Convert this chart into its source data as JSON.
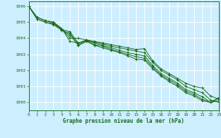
{
  "title": "Graphe pression niveau de la mer (hPa)",
  "bg_color": "#cceeff",
  "grid_color": "#ffffff",
  "line_color": "#1a6b1a",
  "xlim": [
    0,
    23
  ],
  "ylim": [
    999.5,
    1006.3
  ],
  "yticks": [
    1000,
    1001,
    1002,
    1003,
    1004,
    1005,
    1006
  ],
  "xticks": [
    0,
    1,
    2,
    3,
    4,
    5,
    6,
    7,
    8,
    9,
    10,
    11,
    12,
    13,
    14,
    15,
    16,
    17,
    18,
    19,
    20,
    21,
    22,
    23
  ],
  "series": [
    [
      1006.0,
      1005.3,
      1005.1,
      1005.0,
      1004.6,
      1004.0,
      1004.0,
      1003.9,
      1003.8,
      1003.7,
      1003.6,
      1003.5,
      1003.4,
      1003.3,
      1003.35,
      1002.6,
      1002.1,
      1001.8,
      1001.5,
      1001.2,
      1001.0,
      1000.9,
      1000.4,
      1000.2
    ],
    [
      1006.0,
      1005.3,
      1005.1,
      1005.0,
      1004.6,
      1003.8,
      1003.7,
      1003.85,
      1003.75,
      1003.65,
      1003.5,
      1003.4,
      1003.3,
      1003.2,
      1003.1,
      1002.5,
      1002.0,
      1001.7,
      1001.4,
      1001.0,
      1000.8,
      1000.6,
      1000.15,
      1000.0
    ],
    [
      1006.0,
      1005.3,
      1005.1,
      1004.95,
      1004.55,
      1004.4,
      1003.7,
      1003.9,
      1003.7,
      1003.55,
      1003.4,
      1003.25,
      1003.1,
      1003.0,
      1002.9,
      1002.3,
      1001.8,
      1001.5,
      1001.2,
      1000.8,
      1000.6,
      1000.35,
      1000.0,
      1000.3
    ],
    [
      1006.0,
      1005.2,
      1005.0,
      1004.9,
      1004.5,
      1004.3,
      1003.6,
      1003.85,
      1003.6,
      1003.5,
      1003.3,
      1003.15,
      1003.0,
      1002.85,
      1002.75,
      1002.2,
      1001.7,
      1001.4,
      1001.1,
      1000.7,
      1000.5,
      1000.2,
      1000.0,
      1000.25
    ],
    [
      1006.0,
      1005.2,
      1005.0,
      1004.85,
      1004.5,
      1004.2,
      1003.55,
      1003.8,
      1003.55,
      1003.4,
      1003.25,
      1003.1,
      1002.9,
      1002.7,
      1002.65,
      1002.1,
      1001.65,
      1001.3,
      1001.0,
      1000.6,
      1000.4,
      1000.1,
      1000.0,
      1000.1
    ]
  ]
}
